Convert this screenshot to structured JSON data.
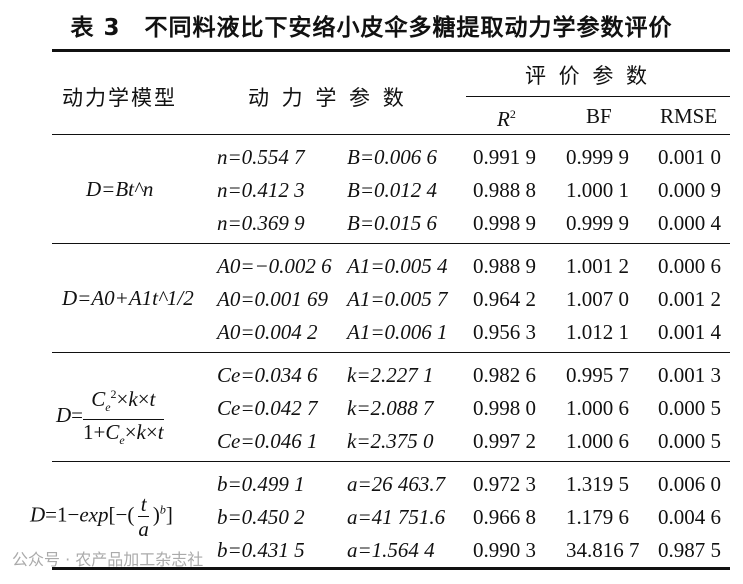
{
  "title": "表 3　不同料液比下安络小皮伞多糖提取动力学参数评价",
  "headers": {
    "model": "动力学模型",
    "params": "动 力 学 参 数",
    "evaluation": "评 价 参 数",
    "r2": "R",
    "r2_sup": "2",
    "bf": "BF",
    "rmse": "RMSE"
  },
  "groups": [
    {
      "model": "D=Bt^n",
      "rows": [
        {
          "p1": "n=0.554 7",
          "p2": "B=0.006 6",
          "r2": "0.991 9",
          "bf": "0.999 9",
          "rmse": "0.001 0"
        },
        {
          "p1": "n=0.412 3",
          "p2": "B=0.012 4",
          "r2": "0.988 8",
          "bf": "1.000 1",
          "rmse": "0.000 9"
        },
        {
          "p1": "n=0.369 9",
          "p2": "B=0.015 6",
          "r2": "0.998 9",
          "bf": "0.999 9",
          "rmse": "0.000 4"
        }
      ]
    },
    {
      "model": "D=A0+A1t^1/2",
      "rows": [
        {
          "p1": "A0=−0.002 6",
          "p2": "A1=0.005 4",
          "r2": "0.988 9",
          "bf": "1.001 2",
          "rmse": "0.000 6"
        },
        {
          "p1": "A0=0.001 69",
          "p2": "A1=0.005 7",
          "r2": "0.964 2",
          "bf": "1.007 0",
          "rmse": "0.001 2"
        },
        {
          "p1": "A0=0.004 2",
          "p2": "A1=0.006 1",
          "r2": "0.956 3",
          "bf": "1.012 1",
          "rmse": "0.001 4"
        }
      ]
    },
    {
      "model": "D=Ce^2×k×t/(1+Ce×k×t)",
      "rows": [
        {
          "p1": "Ce=0.034 6",
          "p2": "k=2.227 1",
          "r2": "0.982 6",
          "bf": "0.995 7",
          "rmse": "0.001 3"
        },
        {
          "p1": "Ce=0.042 7",
          "p2": "k=2.088 7",
          "r2": "0.998 0",
          "bf": "1.000 6",
          "rmse": "0.000 5"
        },
        {
          "p1": "Ce=0.046 1",
          "p2": "k=2.375 0",
          "r2": "0.997 2",
          "bf": "1.000 6",
          "rmse": "0.000 5"
        }
      ]
    },
    {
      "model": "D=1−exp[−(t/a)^b]",
      "rows": [
        {
          "p1": "b=0.499 1",
          "p2": "a=26 463.7",
          "r2": "0.972 3",
          "bf": "1.319 5",
          "rmse": "0.006 0"
        },
        {
          "p1": "b=0.450 2",
          "p2": "a=41 751.6",
          "r2": "0.966 8",
          "bf": "1.179 6",
          "rmse": "0.004 6"
        },
        {
          "p1": "b=0.431 5",
          "p2": "a=1.564 4",
          "r2": "0.990 3",
          "bf": "34.816 7",
          "rmse": "0.987 5"
        }
      ]
    }
  ],
  "watermark": "公众号 · 农产品加工杂志社"
}
